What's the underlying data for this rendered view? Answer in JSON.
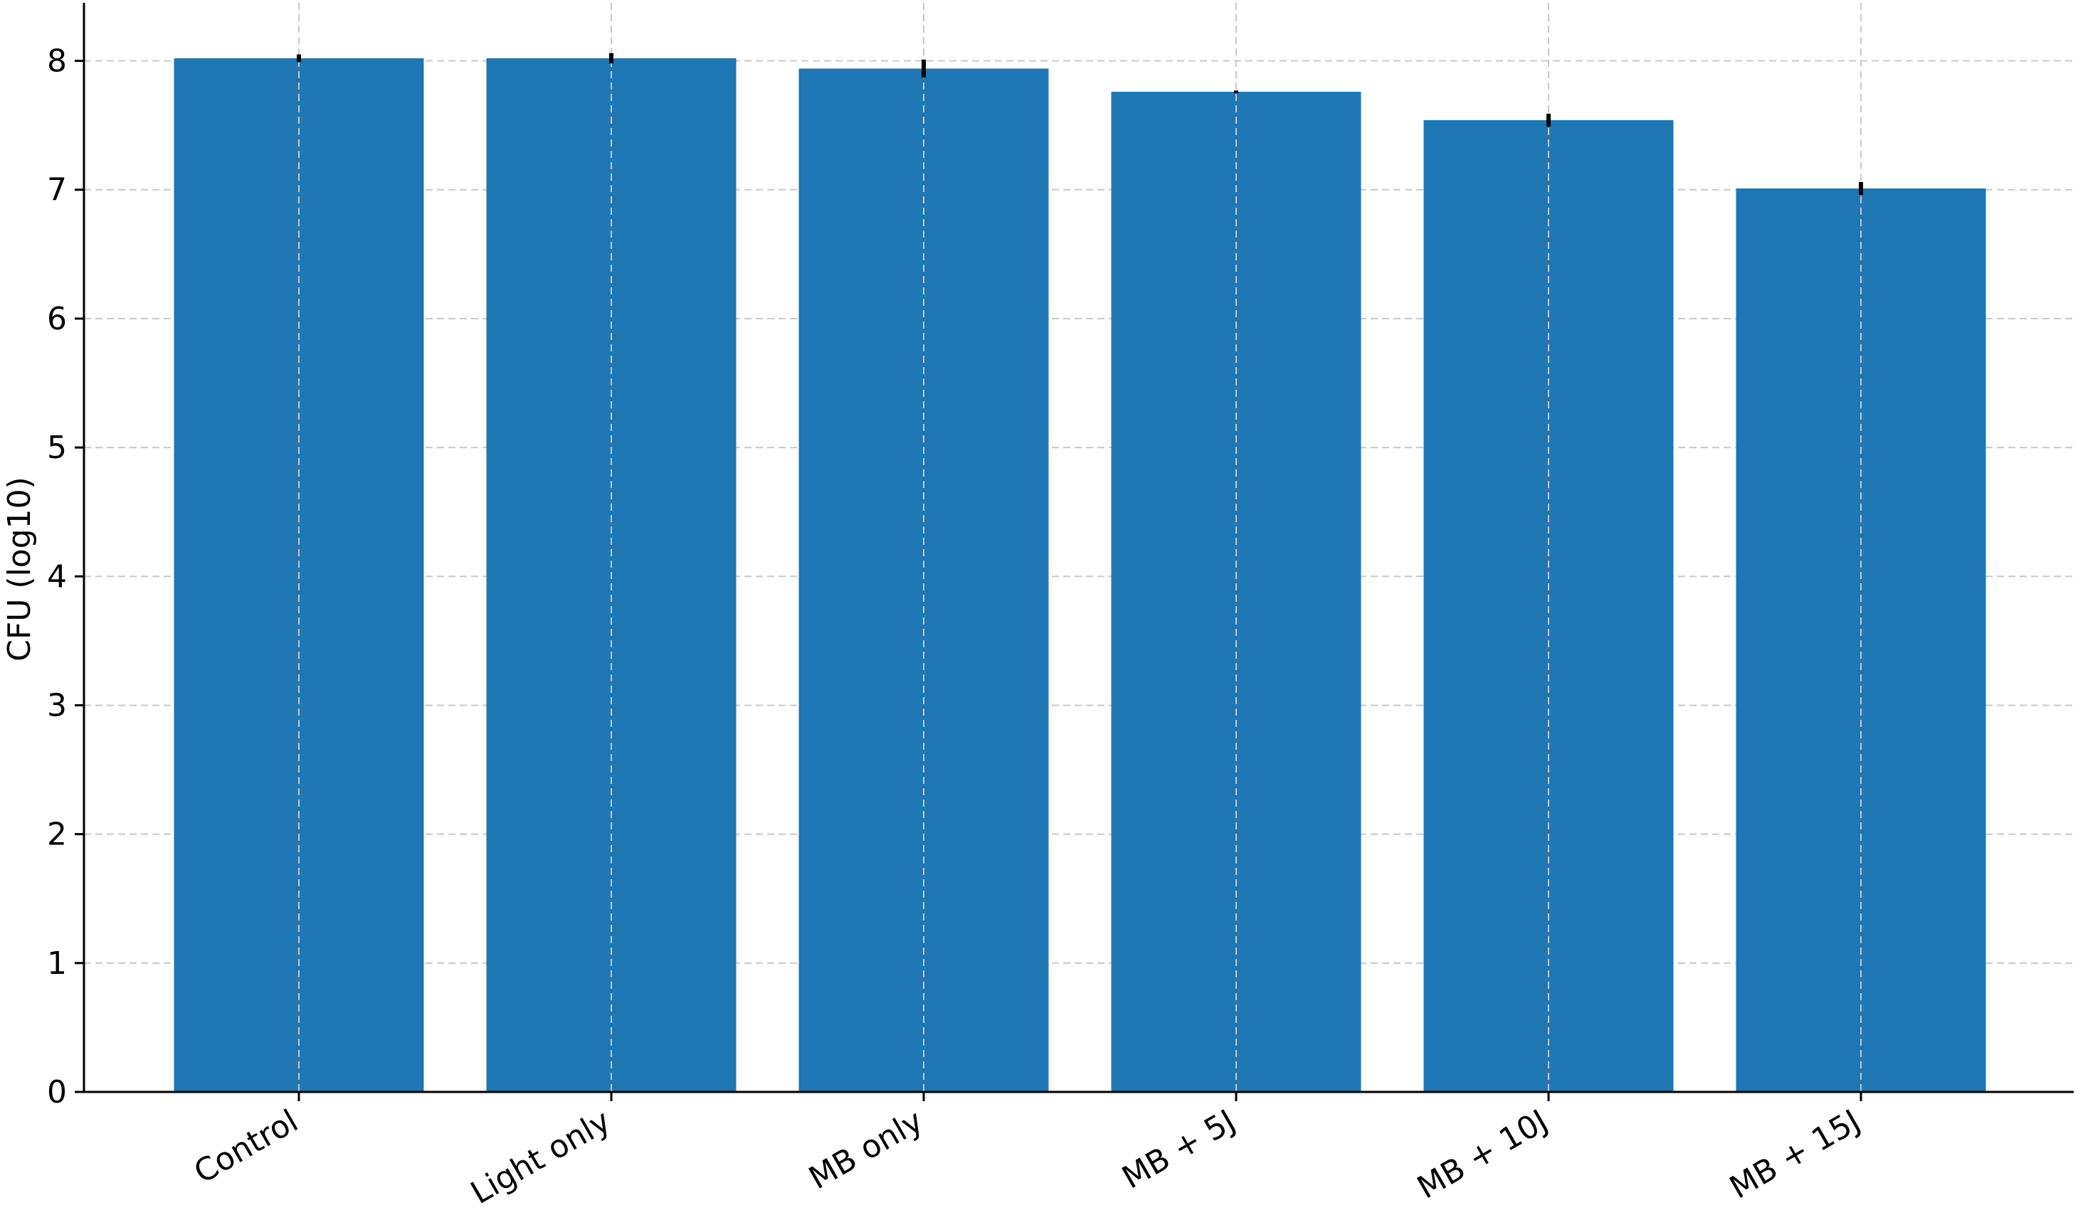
{
  "chart_data": {
    "type": "bar",
    "title": "",
    "xlabel": "",
    "ylabel": "CFU (log10)",
    "categories": [
      "Control",
      "Light only",
      "MB only",
      "MB + 5J",
      "MB + 10J",
      "MB + 15J"
    ],
    "values": [
      8.02,
      8.02,
      7.94,
      7.76,
      7.54,
      7.01
    ],
    "errors": [
      0.03,
      0.04,
      0.07,
      0.01,
      0.05,
      0.05
    ],
    "ylim": [
      0,
      8.45
    ],
    "yticks": [
      0,
      1,
      2,
      3,
      4,
      5,
      6,
      7,
      8
    ],
    "grid": true,
    "legend": "none",
    "bar_color": "#1f77b4",
    "error_color": "#000000",
    "grid_color": "#c8c8c8"
  }
}
